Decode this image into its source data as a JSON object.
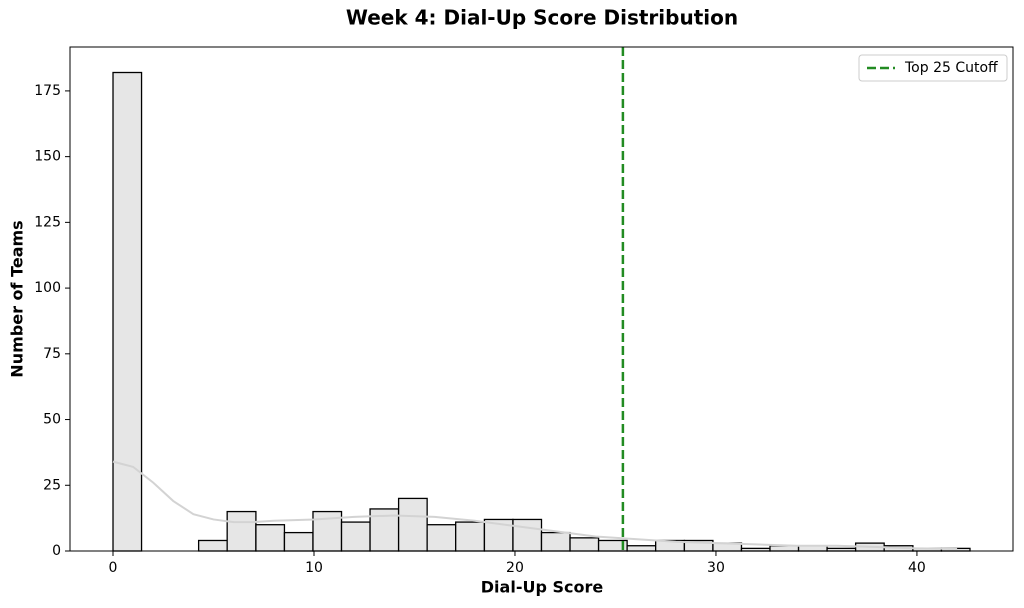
{
  "chart_data": {
    "type": "histogram",
    "title": "Week 4: Dial-Up Score Distribution",
    "x_label": "Dial-Up Score",
    "y_label": "Number of Teams",
    "bins": [
      0,
      1.42,
      2.84,
      4.26,
      5.68,
      7.11,
      8.53,
      9.95,
      11.37,
      12.79,
      14.21,
      15.63,
      17.05,
      18.48,
      19.9,
      21.32,
      22.74,
      24.16,
      25.58,
      27.0,
      28.43,
      29.85,
      31.27,
      32.69,
      34.11,
      35.53,
      36.95,
      38.37,
      39.8,
      41.22,
      42.64
    ],
    "values": [
      182,
      0,
      0,
      4,
      15,
      10,
      7,
      15,
      11,
      16,
      20,
      10,
      11,
      12,
      12,
      7,
      5,
      4,
      2,
      4,
      4,
      3,
      1,
      2,
      2,
      1,
      3,
      2,
      1,
      1
    ],
    "color": "#e6e6e6",
    "kde": {
      "color": "#d3d3d3",
      "x": [
        0,
        1,
        2,
        3,
        4,
        5,
        6,
        7,
        8,
        10,
        12,
        14,
        16,
        18,
        20,
        22,
        24,
        26,
        28,
        30,
        32,
        34,
        36,
        38,
        40,
        42
      ],
      "values": [
        34,
        32,
        26,
        19,
        14,
        12,
        11,
        11,
        11.5,
        12,
        13,
        13.5,
        13,
        11.5,
        9.5,
        7.5,
        5.5,
        4.5,
        3.5,
        3,
        2.5,
        2,
        2,
        1.5,
        1,
        0.8
      ]
    },
    "cutoff": {
      "name": "Top 25 Cutoff",
      "value": 25.37,
      "color": "#228b22"
    },
    "legend": "upper right",
    "xlim": [
      -2.14,
      44.78
    ],
    "xticks": [
      0,
      10,
      20,
      30,
      40
    ],
    "ylim": [
      0,
      191.7
    ],
    "yticks": [
      0,
      25,
      50,
      75,
      100,
      125,
      150,
      175
    ]
  }
}
